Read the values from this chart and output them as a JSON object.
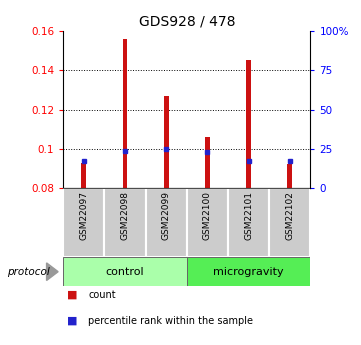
{
  "title": "GDS928 / 478",
  "samples": [
    "GSM22097",
    "GSM22098",
    "GSM22099",
    "GSM22100",
    "GSM22101",
    "GSM22102"
  ],
  "red_values": [
    0.093,
    0.156,
    0.127,
    0.106,
    0.145,
    0.092
  ],
  "blue_values": [
    0.094,
    0.0988,
    0.1,
    0.0984,
    0.0937,
    0.0937
  ],
  "ylim_left": [
    0.08,
    0.16
  ],
  "yticks_left": [
    0.08,
    0.1,
    0.12,
    0.14,
    0.16
  ],
  "ytick_labels_left": [
    "0.08",
    "0.1",
    "0.12",
    "0.14",
    "0.16"
  ],
  "yticks_right": [
    0,
    25,
    50,
    75,
    100
  ],
  "ytick_labels_right": [
    "0",
    "25",
    "50",
    "75",
    "100%"
  ],
  "bar_bottom": 0.08,
  "bar_color": "#cc1111",
  "blue_color": "#2222cc",
  "groups": [
    {
      "label": "control",
      "indices": [
        0,
        1,
        2
      ],
      "color": "#aaffaa"
    },
    {
      "label": "microgravity",
      "indices": [
        3,
        4,
        5
      ],
      "color": "#55ee55"
    }
  ],
  "protocol_label": "protocol",
  "legend_items": [
    {
      "label": "count",
      "color": "#cc1111"
    },
    {
      "label": "percentile rank within the sample",
      "color": "#2222cc"
    }
  ],
  "grid_yticks": [
    0.1,
    0.12,
    0.14
  ],
  "background_color": "#ffffff",
  "bar_width": 0.12
}
